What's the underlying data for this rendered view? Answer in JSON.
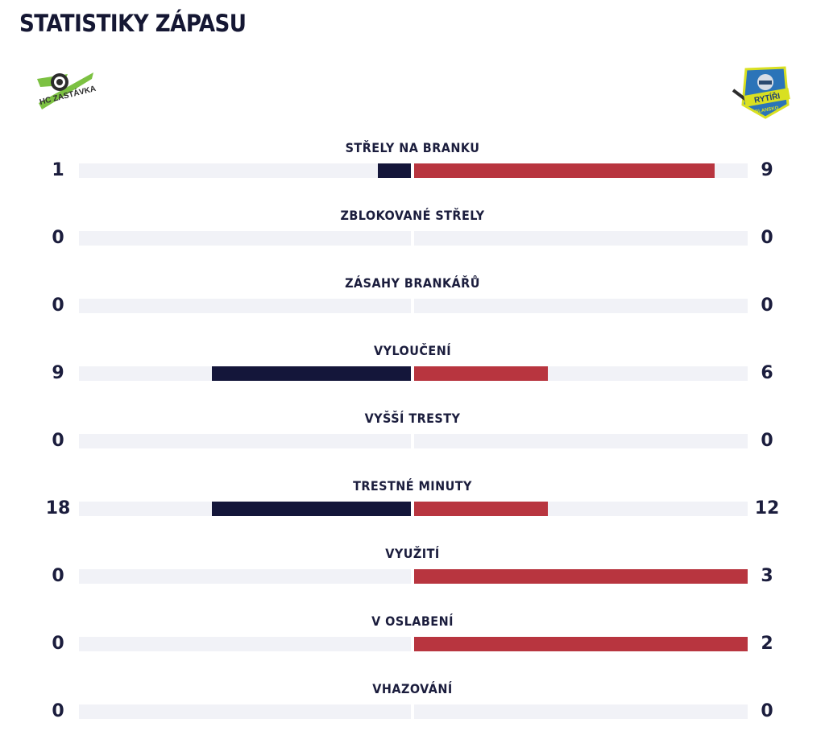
{
  "title": "STATISTIKY ZÁPASU",
  "home_logo": {
    "text": "HC ZASTÁVKA",
    "icon": "hc-zastavka-logo"
  },
  "away_logo": {
    "text": "RYTÍŘI BLANSKO",
    "icon": "rytiri-blansko-logo"
  },
  "colors": {
    "home": "#14163a",
    "away": "#b8353f",
    "track": "#f1f2f7"
  },
  "stats": [
    {
      "label": "STŘELY NA BRANKU",
      "home": "1",
      "away": "9",
      "home_frac": 0.1,
      "away_frac": 0.9
    },
    {
      "label": "ZBLOKOVANÉ STŘELY",
      "home": "0",
      "away": "0",
      "home_frac": 0,
      "away_frac": 0
    },
    {
      "label": "ZÁSAHY BRANKÁŘŮ",
      "home": "0",
      "away": "0",
      "home_frac": 0,
      "away_frac": 0
    },
    {
      "label": "VYLOUČENÍ",
      "home": "9",
      "away": "6",
      "home_frac": 0.6,
      "away_frac": 0.4
    },
    {
      "label": "VYŠŠÍ TRESTY",
      "home": "0",
      "away": "0",
      "home_frac": 0,
      "away_frac": 0
    },
    {
      "label": "TRESTNÉ MINUTY",
      "home": "18",
      "away": "12",
      "home_frac": 0.6,
      "away_frac": 0.4
    },
    {
      "label": "VYUŽITÍ",
      "home": "0",
      "away": "3",
      "home_frac": 0,
      "away_frac": 1
    },
    {
      "label": "V OSLABENÍ",
      "home": "0",
      "away": "2",
      "home_frac": 0,
      "away_frac": 1
    },
    {
      "label": "VHAZOVÁNÍ",
      "home": "0",
      "away": "0",
      "home_frac": 0,
      "away_frac": 0
    }
  ]
}
